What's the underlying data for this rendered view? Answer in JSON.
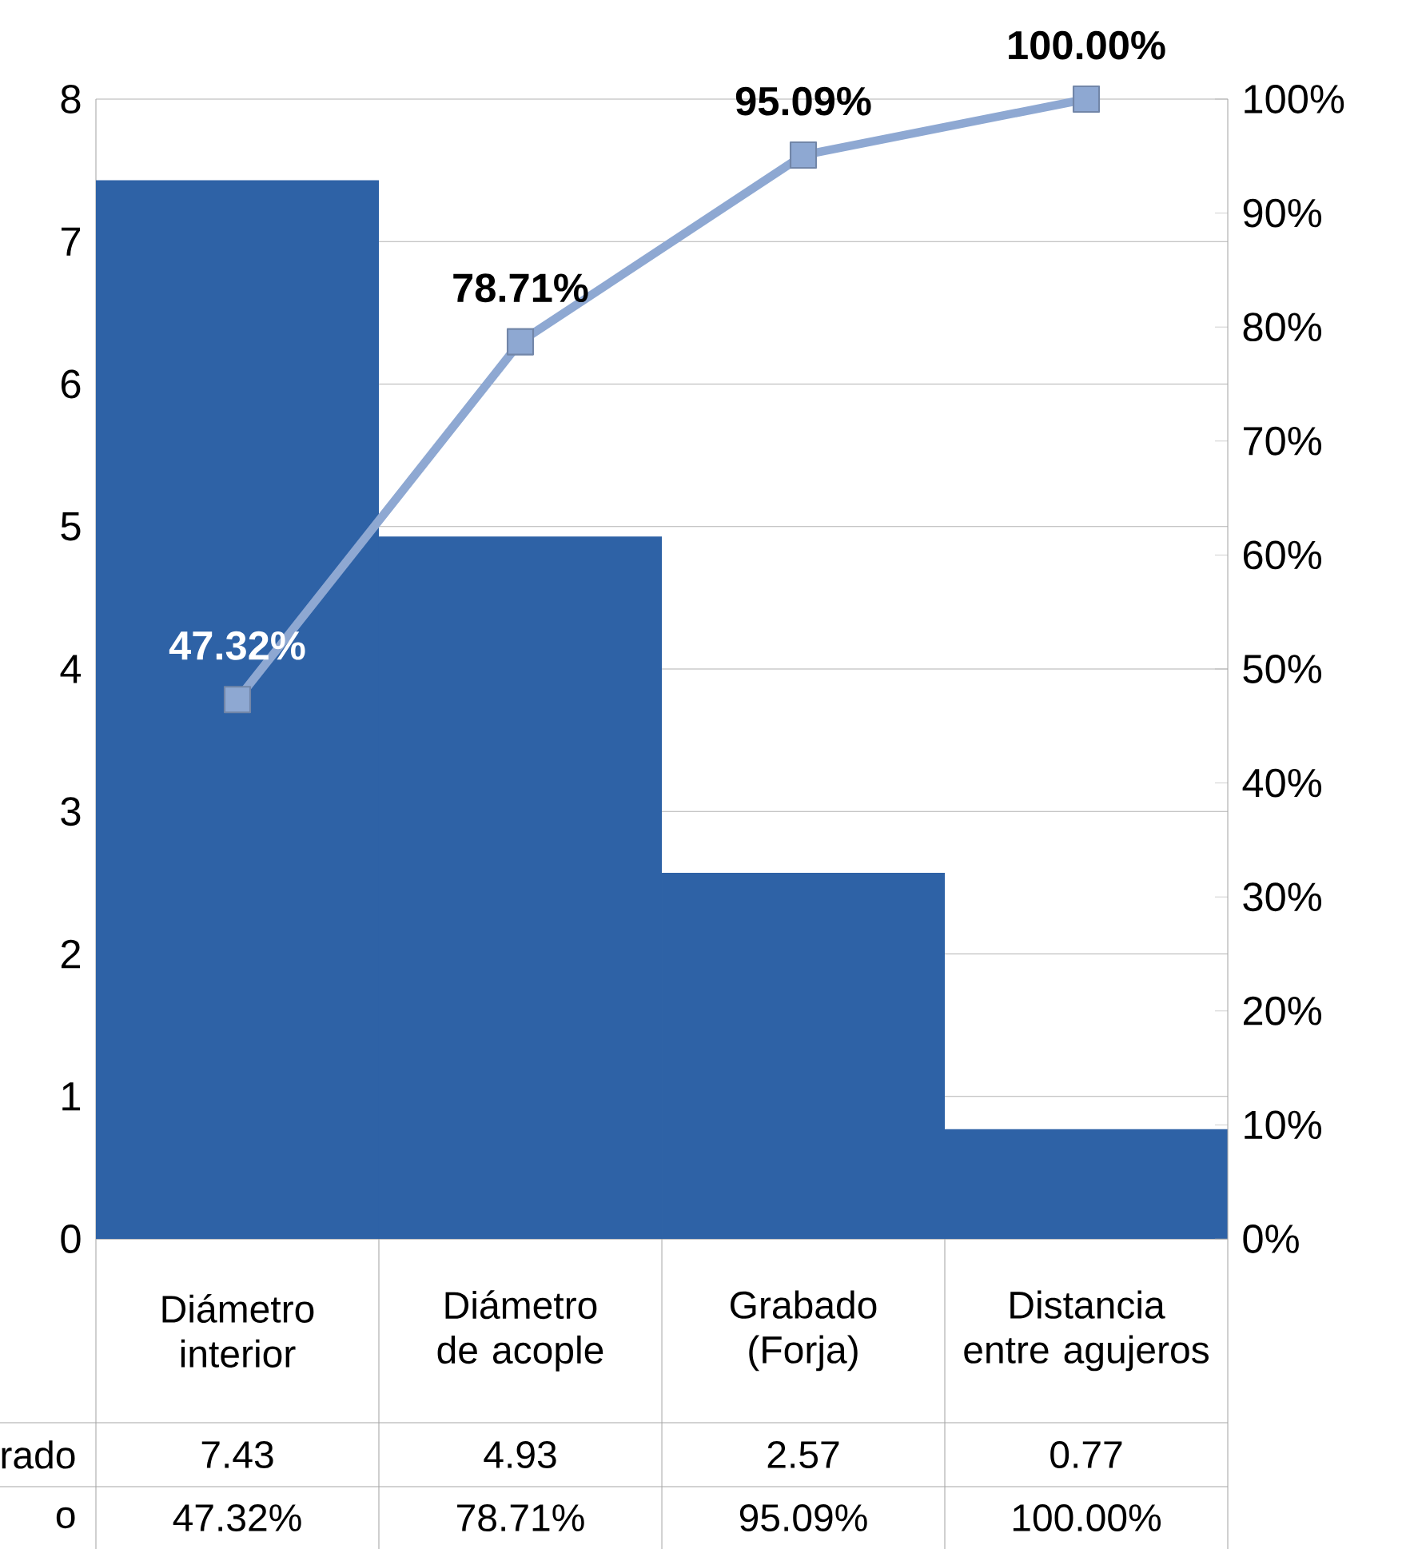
{
  "chart_data": {
    "type": "bar",
    "categories": [
      "Diámetro interior",
      "Diámetro de acople",
      "Grabado (Forja)",
      "Distancia entre agujeros"
    ],
    "series": [
      {
        "color": "#2e62a6",
        "values": [
          7.43,
          4.93,
          2.57,
          0.77
        ],
        "value_labels": [
          "7.43",
          "4.93",
          "2.57",
          "0.77"
        ]
      },
      {
        "type": "line",
        "axis": "y2",
        "color": "#8ea8d2",
        "values": [
          47.32,
          78.71,
          95.09,
          100
        ],
        "value_labels": [
          "47.32%",
          "78.71%",
          "95.09%",
          "100.00%"
        ]
      }
    ],
    "ylim": [
      0,
      8
    ],
    "yticks": [
      0,
      1,
      2,
      3,
      4,
      5,
      6,
      7,
      8
    ],
    "y2lim": [
      0,
      100
    ],
    "y2ticks": [
      {
        "value": 0,
        "label": "0%"
      },
      {
        "value": 10,
        "label": "10%"
      },
      {
        "value": 20,
        "label": "20%"
      },
      {
        "value": 30,
        "label": "30%"
      },
      {
        "value": 40,
        "label": "40%"
      },
      {
        "value": 50,
        "label": "50%"
      },
      {
        "value": 60,
        "label": "60%"
      },
      {
        "value": 70,
        "label": "70%"
      },
      {
        "value": 80,
        "label": "80%"
      },
      {
        "value": 90,
        "label": "90%"
      },
      {
        "value": 100,
        "label": "100%"
      }
    ],
    "annotations": [
      "rado",
      "o"
    ],
    "grid": "y",
    "marker": "square",
    "line_style": "solid"
  }
}
